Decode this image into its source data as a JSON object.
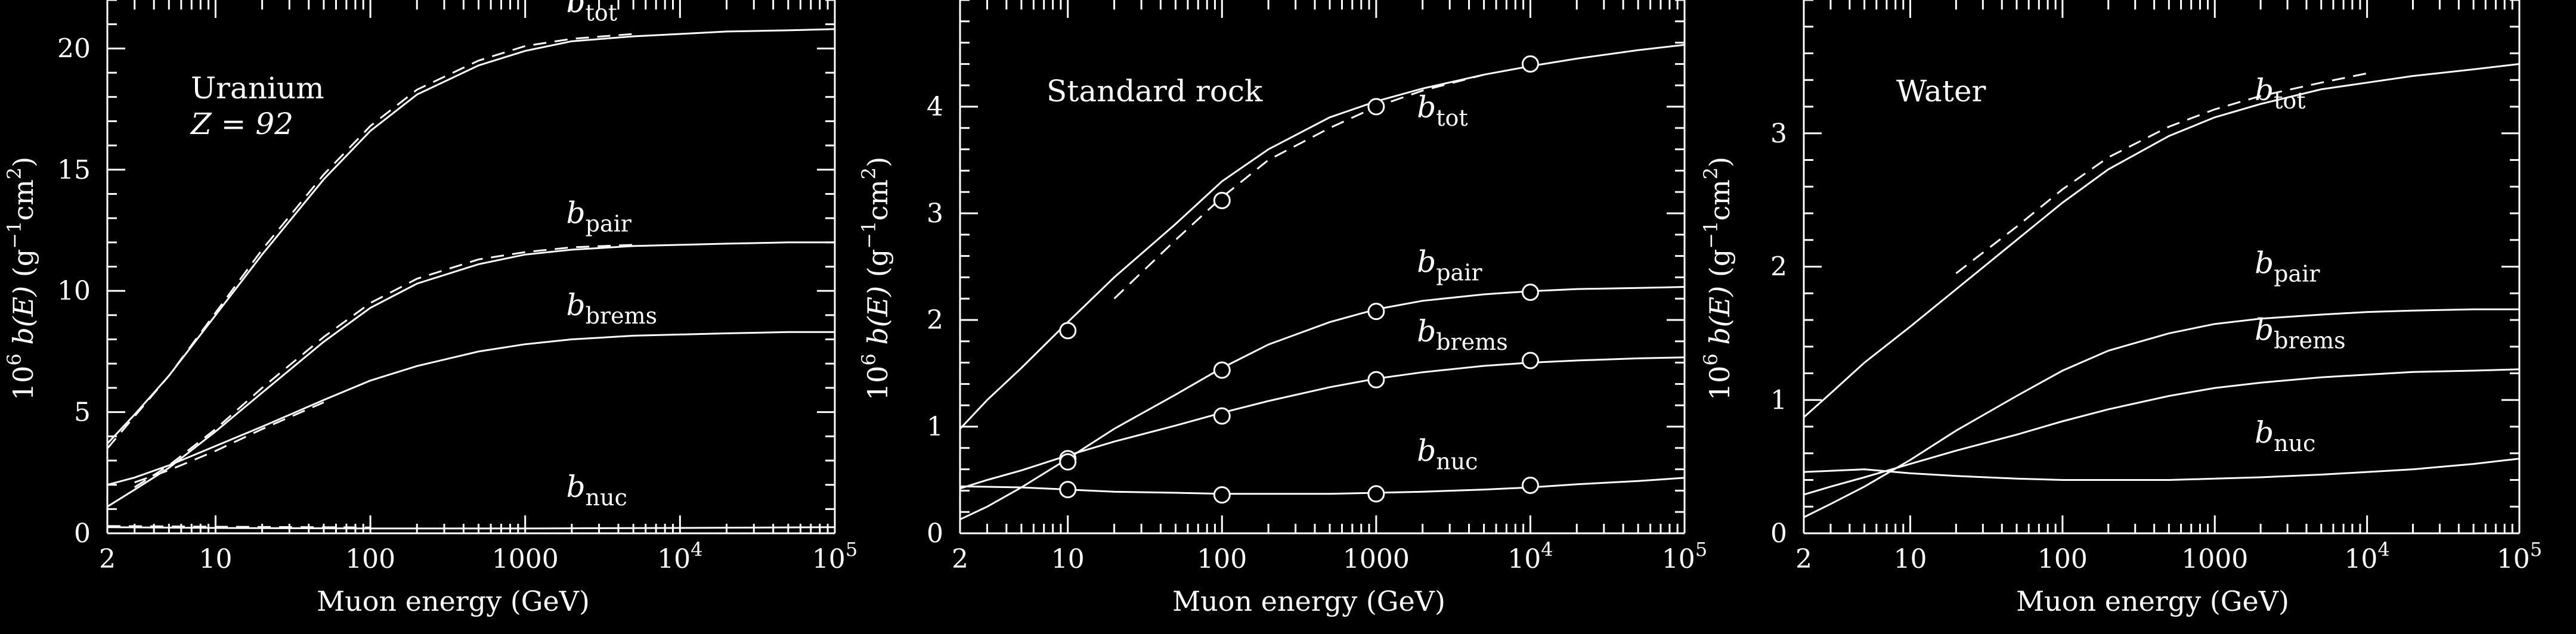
{
  "figure": {
    "colors": {
      "background": "#000000",
      "foreground": "#ffffff"
    }
  },
  "chart_data": [
    {
      "type": "line",
      "title": "Uranium",
      "subtitle": "Z = 92",
      "xlabel": "Muon energy (GeV)",
      "ylabel": "10^6 b(E)   (g^-1 cm^2)",
      "xscale": "log",
      "xlim": [
        2,
        100000
      ],
      "ylim": [
        0,
        22
      ],
      "x_tick_labels": [
        "2",
        "10",
        "100",
        "1000",
        "10^4",
        "10^5"
      ],
      "y_tick_labels": [
        "0",
        "5",
        "10",
        "15",
        "20"
      ],
      "series": [
        {
          "name": "b_tot",
          "style": "solid",
          "x": [
            2,
            3,
            5,
            10,
            20,
            50,
            100,
            200,
            500,
            1000,
            2000,
            5000,
            10000,
            20000,
            50000,
            100000
          ],
          "y": [
            3.7,
            4.9,
            6.5,
            9.0,
            11.5,
            14.6,
            16.6,
            18.1,
            19.3,
            19.9,
            20.3,
            20.5,
            20.6,
            20.7,
            20.75,
            20.8
          ]
        },
        {
          "name": "b_tot",
          "style": "dashed",
          "x": [
            2,
            5,
            10,
            20,
            50,
            100,
            200,
            500,
            1000,
            2000,
            5000
          ],
          "y": [
            3.5,
            6.5,
            9.1,
            11.7,
            14.8,
            16.8,
            18.3,
            19.5,
            20.1,
            20.4,
            20.6
          ]
        },
        {
          "name": "b_pair",
          "style": "solid",
          "x": [
            2,
            3,
            5,
            10,
            20,
            50,
            100,
            200,
            500,
            1000,
            2000,
            5000,
            10000,
            20000,
            50000,
            100000
          ],
          "y": [
            1.1,
            1.8,
            2.7,
            4.2,
            5.8,
            7.9,
            9.3,
            10.3,
            11.1,
            11.5,
            11.7,
            11.85,
            11.9,
            11.95,
            12.0,
            12.0
          ]
        },
        {
          "name": "b_pair",
          "style": "dashed",
          "x": [
            3,
            5,
            10,
            20,
            50,
            100,
            200,
            500,
            1000,
            2000,
            5000
          ],
          "y": [
            1.9,
            2.8,
            4.3,
            6.0,
            8.1,
            9.5,
            10.5,
            11.3,
            11.6,
            11.8,
            11.9
          ]
        },
        {
          "name": "b_brems",
          "style": "solid",
          "x": [
            2,
            3,
            5,
            10,
            20,
            50,
            100,
            200,
            500,
            1000,
            2000,
            5000,
            10000,
            20000,
            50000,
            100000
          ],
          "y": [
            2.0,
            2.3,
            2.8,
            3.6,
            4.4,
            5.5,
            6.3,
            6.9,
            7.5,
            7.8,
            8.0,
            8.15,
            8.2,
            8.25,
            8.3,
            8.3
          ]
        },
        {
          "name": "b_brems",
          "style": "dashed",
          "x": [
            3,
            5,
            10,
            20,
            50
          ],
          "y": [
            2.1,
            2.6,
            3.4,
            4.3,
            5.4
          ]
        },
        {
          "name": "b_nuc",
          "style": "solid",
          "x": [
            2,
            10,
            100,
            1000,
            10000,
            100000
          ],
          "y": [
            0.25,
            0.22,
            0.2,
            0.2,
            0.22,
            0.25
          ]
        },
        {
          "name": "b_nuc",
          "style": "dashed",
          "x": [
            2,
            10,
            100
          ],
          "y": [
            0.3,
            0.27,
            0.24
          ]
        }
      ],
      "labels": [
        {
          "base": "b",
          "sub": "tot",
          "x": 3000,
          "y": 21.5
        },
        {
          "base": "b",
          "sub": "pair",
          "x": 3000,
          "y": 12.8
        },
        {
          "base": "b",
          "sub": "brems",
          "x": 3000,
          "y": 9.0
        },
        {
          "base": "b",
          "sub": "nuc",
          "x": 3000,
          "y": 1.5
        }
      ]
    },
    {
      "type": "line",
      "title": "Standard rock",
      "xlabel": "Muon energy (GeV)",
      "ylabel": "10^6 b(E)   (g^-1 cm^2)",
      "xscale": "log",
      "xlim": [
        2,
        100000
      ],
      "ylim": [
        0,
        5
      ],
      "x_tick_labels": [
        "2",
        "10",
        "100",
        "1000",
        "10^4",
        "10^5"
      ],
      "y_tick_labels": [
        "0",
        "1",
        "2",
        "3",
        "4"
      ],
      "series": [
        {
          "name": "b_tot",
          "style": "solid",
          "x": [
            2,
            3,
            5,
            10,
            20,
            50,
            100,
            200,
            500,
            1000,
            2000,
            5000,
            10000,
            20000,
            50000,
            100000
          ],
          "y": [
            0.98,
            1.25,
            1.55,
            1.98,
            2.4,
            2.9,
            3.3,
            3.6,
            3.9,
            4.05,
            4.17,
            4.3,
            4.38,
            4.45,
            4.53,
            4.58
          ]
        },
        {
          "name": "b_tot",
          "style": "dashed",
          "x": [
            20,
            50,
            100,
            200,
            500,
            1000,
            2000,
            5000
          ],
          "y": [
            2.2,
            2.75,
            3.15,
            3.5,
            3.8,
            4.0,
            4.15,
            4.3
          ]
        },
        {
          "name": "b_pair",
          "style": "solid",
          "x": [
            2,
            3,
            5,
            10,
            20,
            50,
            100,
            200,
            500,
            1000,
            2000,
            5000,
            10000,
            20000,
            50000,
            100000
          ],
          "y": [
            0.13,
            0.25,
            0.43,
            0.7,
            0.98,
            1.3,
            1.55,
            1.77,
            1.98,
            2.1,
            2.18,
            2.24,
            2.27,
            2.29,
            2.3,
            2.31
          ]
        },
        {
          "name": "b_brems",
          "style": "solid",
          "x": [
            2,
            3,
            5,
            10,
            20,
            50,
            100,
            200,
            500,
            1000,
            2000,
            5000,
            10000,
            20000,
            50000,
            100000
          ],
          "y": [
            0.42,
            0.5,
            0.59,
            0.73,
            0.86,
            1.01,
            1.13,
            1.24,
            1.37,
            1.45,
            1.51,
            1.57,
            1.6,
            1.62,
            1.64,
            1.65
          ]
        },
        {
          "name": "b_nuc",
          "style": "solid",
          "x": [
            2,
            5,
            10,
            20,
            50,
            100,
            200,
            500,
            1000,
            2000,
            5000,
            10000,
            20000,
            50000,
            100000
          ],
          "y": [
            0.44,
            0.43,
            0.41,
            0.39,
            0.38,
            0.37,
            0.37,
            0.37,
            0.38,
            0.39,
            0.41,
            0.43,
            0.46,
            0.49,
            0.52
          ]
        }
      ],
      "markers": [
        {
          "name": "b_tot",
          "x": [
            10,
            100,
            1000,
            10000
          ],
          "y": [
            1.9,
            3.12,
            4.0,
            4.4
          ]
        },
        {
          "name": "b_pair",
          "x": [
            10,
            100,
            1000,
            10000
          ],
          "y": [
            0.7,
            1.53,
            2.08,
            2.26
          ]
        },
        {
          "name": "b_brems",
          "x": [
            10,
            100,
            1000,
            10000
          ],
          "y": [
            0.67,
            1.1,
            1.44,
            1.62
          ]
        },
        {
          "name": "b_nuc",
          "x": [
            10,
            100,
            1000,
            10000
          ],
          "y": [
            0.41,
            0.36,
            0.37,
            0.45
          ]
        }
      ],
      "labels": [
        {
          "base": "b",
          "sub": "tot",
          "x": 3000,
          "y": 3.9
        },
        {
          "base": "b",
          "sub": "pair",
          "x": 3000,
          "y": 2.45
        },
        {
          "base": "b",
          "sub": "brems",
          "x": 3000,
          "y": 1.8
        },
        {
          "base": "b",
          "sub": "nuc",
          "x": 3000,
          "y": 0.68
        }
      ]
    },
    {
      "type": "line",
      "title": "Water",
      "xlabel": "Muon energy (GeV)",
      "ylabel": "10^6 b(E)   (g^-1 cm^2)",
      "xscale": "log",
      "xlim": [
        2,
        100000
      ],
      "ylim": [
        0,
        4
      ],
      "x_tick_labels": [
        "2",
        "10",
        "100",
        "1000",
        "10^4",
        "10^5"
      ],
      "y_tick_labels": [
        "0",
        "1",
        "2",
        "3"
      ],
      "series": [
        {
          "name": "b_tot",
          "style": "solid",
          "x": [
            2,
            3,
            5,
            10,
            20,
            50,
            100,
            200,
            500,
            1000,
            2000,
            5000,
            10000,
            20000,
            50000,
            100000
          ],
          "y": [
            0.87,
            1.05,
            1.28,
            1.55,
            1.83,
            2.2,
            2.48,
            2.73,
            2.98,
            3.12,
            3.22,
            3.33,
            3.38,
            3.43,
            3.48,
            3.52
          ]
        },
        {
          "name": "b_tot",
          "style": "dashed",
          "x": [
            20,
            50,
            100,
            200,
            500,
            1000,
            2000,
            5000,
            10000
          ],
          "y": [
            1.95,
            2.3,
            2.58,
            2.82,
            3.05,
            3.18,
            3.28,
            3.38,
            3.45
          ]
        },
        {
          "name": "b_pair",
          "style": "solid",
          "x": [
            2,
            3,
            5,
            10,
            20,
            50,
            100,
            200,
            500,
            1000,
            2000,
            5000,
            10000,
            20000,
            50000,
            100000
          ],
          "y": [
            0.12,
            0.22,
            0.35,
            0.55,
            0.77,
            1.03,
            1.22,
            1.37,
            1.5,
            1.57,
            1.61,
            1.64,
            1.66,
            1.67,
            1.68,
            1.68
          ]
        },
        {
          "name": "b_brems",
          "style": "solid",
          "x": [
            2,
            3,
            5,
            10,
            20,
            50,
            100,
            200,
            500,
            1000,
            2000,
            5000,
            10000,
            20000,
            50000,
            100000
          ],
          "y": [
            0.29,
            0.35,
            0.42,
            0.52,
            0.62,
            0.74,
            0.84,
            0.93,
            1.03,
            1.09,
            1.13,
            1.17,
            1.19,
            1.21,
            1.22,
            1.23
          ]
        },
        {
          "name": "b_nuc",
          "style": "solid",
          "x": [
            2,
            5,
            10,
            20,
            50,
            100,
            200,
            500,
            1000,
            2000,
            5000,
            10000,
            20000,
            50000,
            100000
          ],
          "y": [
            0.46,
            0.48,
            0.45,
            0.43,
            0.41,
            0.4,
            0.4,
            0.4,
            0.41,
            0.42,
            0.44,
            0.46,
            0.48,
            0.52,
            0.56
          ]
        }
      ],
      "labels": [
        {
          "base": "b",
          "sub": "tot",
          "x": 3000,
          "y": 3.25
        },
        {
          "base": "b",
          "sub": "pair",
          "x": 3000,
          "y": 1.95
        },
        {
          "base": "b",
          "sub": "brems",
          "x": 3000,
          "y": 1.45
        },
        {
          "base": "b",
          "sub": "nuc",
          "x": 3000,
          "y": 0.68
        }
      ]
    }
  ]
}
